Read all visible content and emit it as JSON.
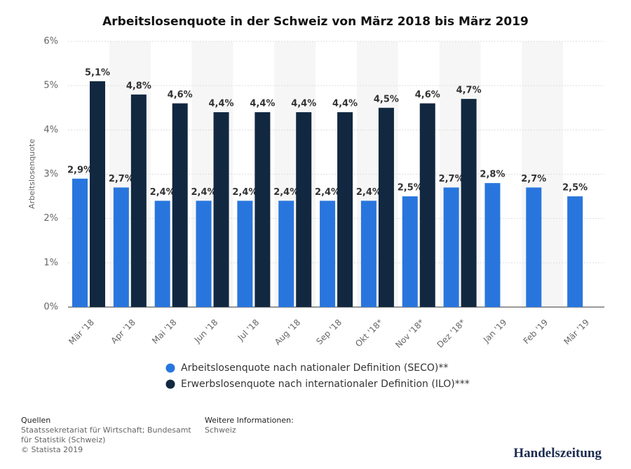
{
  "chart_data": {
    "type": "bar",
    "title": "Arbeitslosenquote in der Schweiz von März 2018 bis März 2019",
    "y_label": "Arbeitslosenquote",
    "categories": [
      "Mär '18",
      "Apr '18",
      "Mai '18",
      "Jun '18",
      "Jul '18",
      "Aug '18",
      "Sep '18",
      "Okt '18*",
      "Nov '18*",
      "Dez '18*",
      "Jan '19",
      "Feb '19",
      "Mär '19"
    ],
    "series": [
      {
        "name": "Arbeitslosenquote nach nationaler Definition (SECO)**",
        "color": "#2876dd",
        "values": [
          2.9,
          2.7,
          2.4,
          2.4,
          2.4,
          2.4,
          2.4,
          2.4,
          2.5,
          2.7,
          2.8,
          2.7,
          2.5
        ],
        "value_labels": [
          "2,9%",
          "2,7%",
          "2,4%",
          "2,4%",
          "2,4%",
          "2,4%",
          "2,4%",
          "2,4%",
          "2,5%",
          "2,7%",
          "2,8%",
          "2,7%",
          "2,5%"
        ]
      },
      {
        "name": "Erwerbslosenquote nach internationaler Definition (ILO)***",
        "color": "#112840",
        "values": [
          5.1,
          4.8,
          4.6,
          4.4,
          4.4,
          4.4,
          4.4,
          4.5,
          4.6,
          4.7,
          null,
          null,
          null
        ],
        "value_labels": [
          "5,1%",
          "4,8%",
          "4,6%",
          "4,4%",
          "4,4%",
          "4,4%",
          "4,4%",
          "4,5%",
          "4,6%",
          "4,7%",
          null,
          null,
          null
        ]
      }
    ],
    "ylim": [
      0,
      6
    ],
    "yticks": [
      {
        "value": 0,
        "label": "0%"
      },
      {
        "value": 1,
        "label": "1%"
      },
      {
        "value": 2,
        "label": "2%"
      },
      {
        "value": 3,
        "label": "3%"
      },
      {
        "value": 4,
        "label": "4%"
      },
      {
        "value": 5,
        "label": "5%"
      },
      {
        "value": 6,
        "label": "6%"
      }
    ],
    "grid": true
  },
  "footer": {
    "sources_title": "Quellen",
    "sources": "Staatssekretariat für Wirtschaft; Bundesamt für Statistik (Schweiz)",
    "copyright": "© Statista 2019",
    "info_title": "Weitere Informationen:",
    "info": "Schweiz",
    "logo": "Handelszeitung"
  }
}
